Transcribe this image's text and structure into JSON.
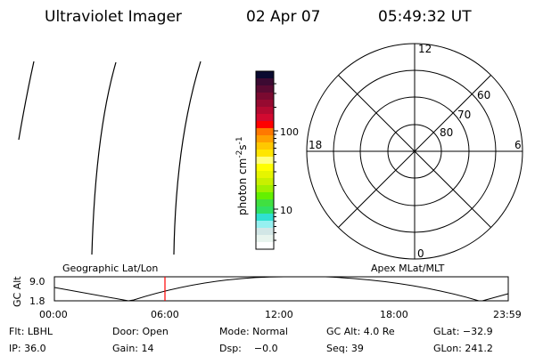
{
  "header": {
    "title": "Ultraviolet Imager",
    "date": "02 Apr 07",
    "time": "05:49:32 UT"
  },
  "colorbar": {
    "label": "photon cm",
    "label_sup1": "-2",
    "label_mid": "s",
    "label_sup2": "-1",
    "ticks": [
      "100",
      "10"
    ],
    "colors": [
      "#0a0a30",
      "#3c0a32",
      "#5a0a32",
      "#7a0a30",
      "#960a30",
      "#b40a30",
      "#d20a30",
      "#ff0000",
      "#ff7800",
      "#ffa000",
      "#ffc800",
      "#ffe600",
      "#ffff80",
      "#ffff00",
      "#e6f500",
      "#c8f000",
      "#a0f000",
      "#64f000",
      "#40e040",
      "#30e064",
      "#30e0d2",
      "#96f0f0",
      "#d2e6e6",
      "#e8f4ee",
      "#ffffff"
    ]
  },
  "polar": {
    "mlt_labels": {
      "top": "12",
      "left": "18",
      "right": "6",
      "bottom": "0"
    },
    "lat_labels": [
      "60",
      "70",
      "80"
    ]
  },
  "timeline": {
    "left_label": "Geographic Lat/Lon",
    "right_label": "Apex MLat/MLT",
    "ylabel": "GC Alt",
    "y_ticks": [
      "9.0",
      "1.8"
    ],
    "x_ticks": [
      "00:00",
      "06:00",
      "12:00",
      "18:00",
      "23:59"
    ],
    "current_time_color": "#ff0000"
  },
  "info": {
    "row1": [
      "Flt: LBHL",
      "Door: Open",
      "Mode: Normal",
      "GC Alt: 4.0 Re",
      "GLat: −32.9"
    ],
    "row2": [
      "IP: 36.0",
      "Gain: 14",
      "Dsp:    −0.0",
      "Seq: 39",
      "GLon: 241.2"
    ]
  }
}
